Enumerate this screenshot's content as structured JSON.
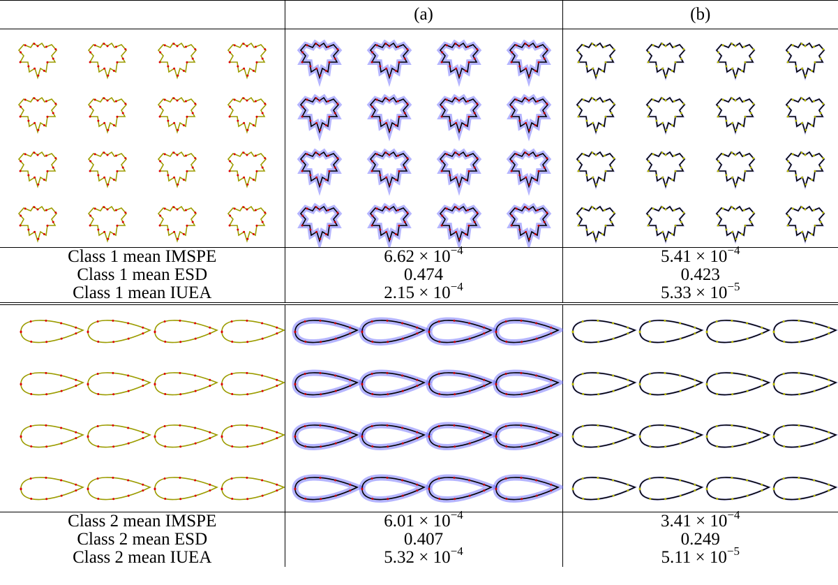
{
  "header": {
    "columns": [
      "(a)",
      "(b)"
    ]
  },
  "sections": [
    {
      "metrics": [
        {
          "label": "Class 1 mean IMSPE",
          "values": [
            {
              "base": "6.62 × 10",
              "exponent": "−4"
            },
            {
              "base": "5.41 × 10",
              "exponent": "−4"
            }
          ]
        },
        {
          "label": "Class 1 mean ESD",
          "values": [
            {
              "base": "0.474"
            },
            {
              "base": "0.423"
            }
          ]
        },
        {
          "label": "Class 1 mean IUEA",
          "values": [
            {
              "base": "2.15 × 10",
              "exponent": "−4"
            },
            {
              "base": "5.33 × 10",
              "exponent": "−5"
            }
          ]
        }
      ]
    },
    {
      "metrics": [
        {
          "label": "Class 2 mean IMSPE",
          "values": [
            {
              "base": "6.01 × 10",
              "exponent": "−4"
            },
            {
              "base": "3.41 × 10",
              "exponent": "−4"
            }
          ]
        },
        {
          "label": "Class 2 mean ESD",
          "values": [
            {
              "base": "0.407"
            },
            {
              "base": "0.249"
            }
          ]
        },
        {
          "label": "Class 2 mean IUEA",
          "values": [
            {
              "base": "5.32 × 10",
              "exponent": "−4"
            },
            {
              "base": "5.11 × 10",
              "exponent": "−5"
            }
          ]
        }
      ]
    }
  ]
}
